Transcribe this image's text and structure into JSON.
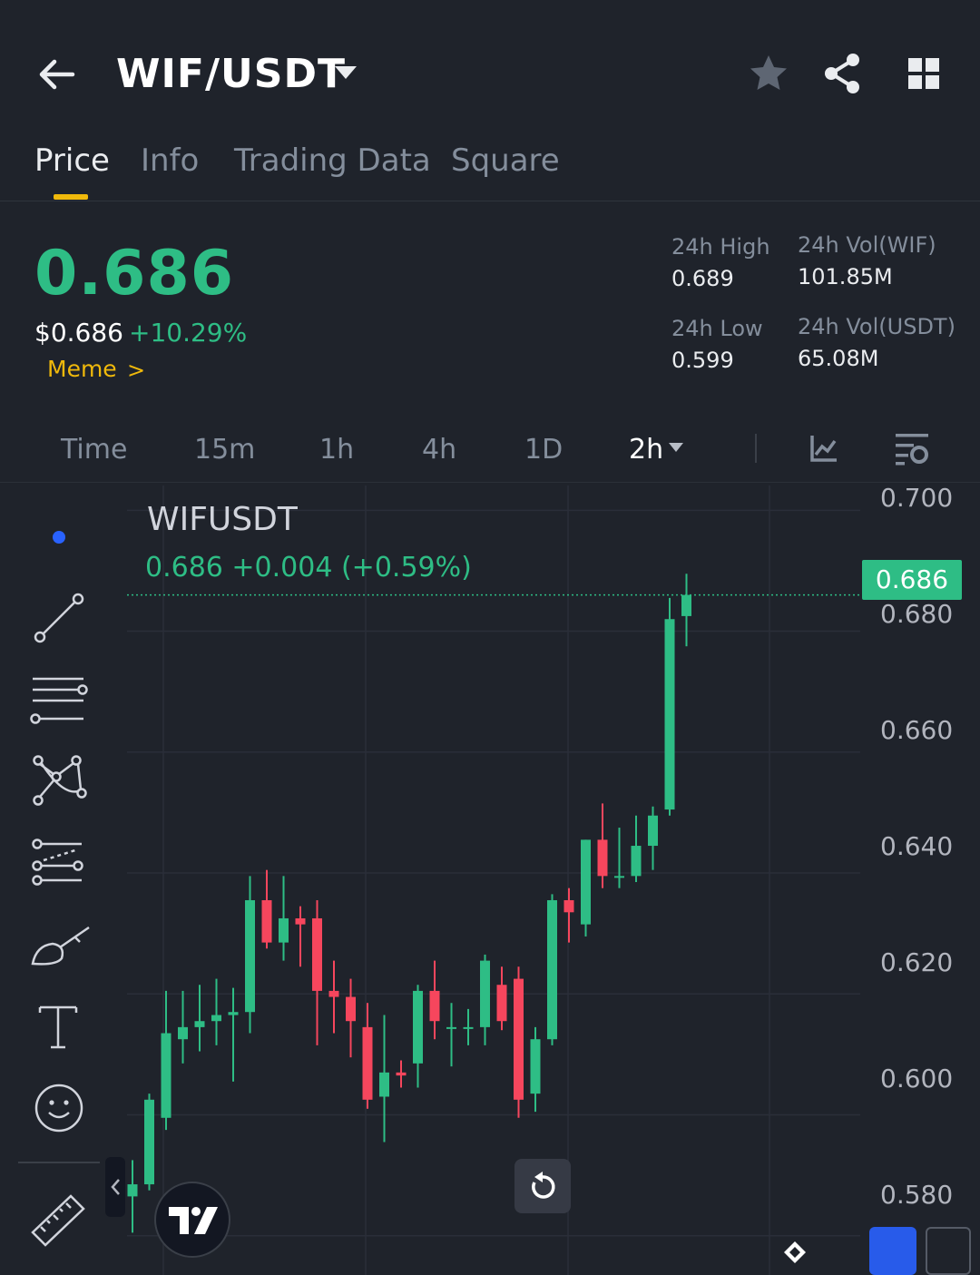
{
  "header": {
    "pair": "WIF/USDT"
  },
  "tabs": [
    {
      "label": "Price",
      "active": true
    },
    {
      "label": "Info",
      "active": false
    },
    {
      "label": "Trading Data",
      "active": false
    },
    {
      "label": "Square",
      "active": false
    }
  ],
  "ticker": {
    "last_price": "0.686",
    "usd_price": "$0.686",
    "change_pct": "+10.29%",
    "tag": "Meme",
    "tag_chevron": ">",
    "high_label": "24h High",
    "high_value": "0.689",
    "low_label": "24h Low",
    "low_value": "0.599",
    "vol_base_label": "24h Vol(WIF)",
    "vol_base_value": "101.85M",
    "vol_quote_label": "24h Vol(USDT)",
    "vol_quote_value": "65.08M"
  },
  "intervals": [
    {
      "label": "Time",
      "active": false
    },
    {
      "label": "15m",
      "active": false
    },
    {
      "label": "1h",
      "active": false
    },
    {
      "label": "4h",
      "active": false
    },
    {
      "label": "1D",
      "active": false
    },
    {
      "label": "2h",
      "active": true
    }
  ],
  "chart": {
    "symbol": "WIFUSDT",
    "ohlc_line": "0.686  +0.004 (+0.59%)",
    "last_tag": "0.686",
    "axis_labels": [
      "0.700",
      "0.680",
      "0.660",
      "0.640",
      "0.620",
      "0.600",
      "0.580"
    ]
  },
  "chart_data": {
    "type": "candlestick",
    "ylim": [
      0.575,
      0.702
    ],
    "y_ticks": [
      0.7,
      0.68,
      0.66,
      0.64,
      0.62,
      0.6,
      0.58
    ],
    "last_price": 0.686,
    "up_color": "#2ebd85",
    "down_color": "#f6465d",
    "candles": [
      {
        "o": 0.5865,
        "h": 0.5925,
        "l": 0.5805,
        "c": 0.5885
      },
      {
        "o": 0.5885,
        "h": 0.6035,
        "l": 0.5875,
        "c": 0.6025
      },
      {
        "o": 0.5995,
        "h": 0.6205,
        "l": 0.5975,
        "c": 0.6135
      },
      {
        "o": 0.6125,
        "h": 0.6205,
        "l": 0.6085,
        "c": 0.6145
      },
      {
        "o": 0.6145,
        "h": 0.6215,
        "l": 0.6105,
        "c": 0.6155
      },
      {
        "o": 0.6155,
        "h": 0.6225,
        "l": 0.6115,
        "c": 0.6165
      },
      {
        "o": 0.6165,
        "h": 0.621,
        "l": 0.6055,
        "c": 0.617
      },
      {
        "o": 0.617,
        "h": 0.6395,
        "l": 0.6135,
        "c": 0.6355
      },
      {
        "o": 0.6355,
        "h": 0.6405,
        "l": 0.6275,
        "c": 0.6285
      },
      {
        "o": 0.6285,
        "h": 0.6395,
        "l": 0.6255,
        "c": 0.6325
      },
      {
        "o": 0.6325,
        "h": 0.6345,
        "l": 0.6245,
        "c": 0.6315
      },
      {
        "o": 0.6325,
        "h": 0.6355,
        "l": 0.6115,
        "c": 0.6205
      },
      {
        "o": 0.6205,
        "h": 0.6255,
        "l": 0.6135,
        "c": 0.6195
      },
      {
        "o": 0.6195,
        "h": 0.6225,
        "l": 0.6095,
        "c": 0.6155
      },
      {
        "o": 0.6145,
        "h": 0.6185,
        "l": 0.601,
        "c": 0.6025
      },
      {
        "o": 0.603,
        "h": 0.6165,
        "l": 0.5955,
        "c": 0.607
      },
      {
        "o": 0.607,
        "h": 0.609,
        "l": 0.6045,
        "c": 0.6065
      },
      {
        "o": 0.6085,
        "h": 0.6215,
        "l": 0.6045,
        "c": 0.6205
      },
      {
        "o": 0.6205,
        "h": 0.6255,
        "l": 0.6125,
        "c": 0.6155
      },
      {
        "o": 0.6145,
        "h": 0.6185,
        "l": 0.608,
        "c": 0.6145
      },
      {
        "o": 0.6145,
        "h": 0.6175,
        "l": 0.6115,
        "c": 0.6145
      },
      {
        "o": 0.6145,
        "h": 0.6265,
        "l": 0.6115,
        "c": 0.6255
      },
      {
        "o": 0.6215,
        "h": 0.6245,
        "l": 0.614,
        "c": 0.6155
      },
      {
        "o": 0.6225,
        "h": 0.6245,
        "l": 0.5995,
        "c": 0.6025
      },
      {
        "o": 0.6035,
        "h": 0.6145,
        "l": 0.6005,
        "c": 0.6125
      },
      {
        "o": 0.6125,
        "h": 0.6365,
        "l": 0.6115,
        "c": 0.6355
      },
      {
        "o": 0.6355,
        "h": 0.6375,
        "l": 0.6285,
        "c": 0.6335
      },
      {
        "o": 0.6315,
        "h": 0.6455,
        "l": 0.6295,
        "c": 0.6455
      },
      {
        "o": 0.6455,
        "h": 0.6515,
        "l": 0.6375,
        "c": 0.6395
      },
      {
        "o": 0.6395,
        "h": 0.6475,
        "l": 0.6375,
        "c": 0.6395
      },
      {
        "o": 0.6395,
        "h": 0.6495,
        "l": 0.6385,
        "c": 0.6445
      },
      {
        "o": 0.6445,
        "h": 0.651,
        "l": 0.6405,
        "c": 0.6495
      },
      {
        "o": 0.6505,
        "h": 0.6855,
        "l": 0.6495,
        "c": 0.682
      },
      {
        "o": 0.6825,
        "h": 0.6895,
        "l": 0.6775,
        "c": 0.686
      }
    ]
  }
}
